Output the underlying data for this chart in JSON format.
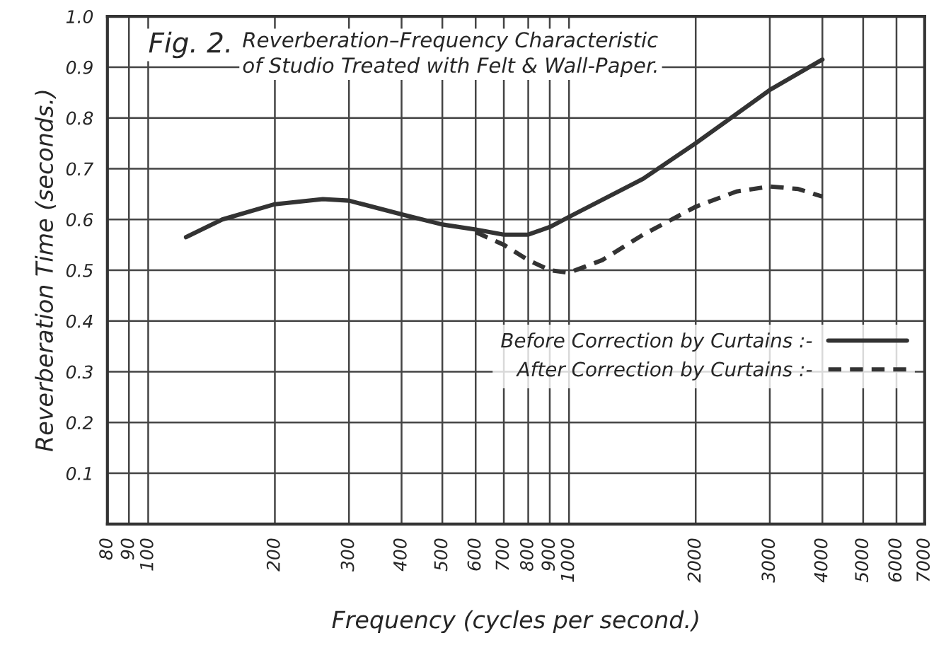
{
  "chart_data": {
    "type": "line",
    "title": "Reverberation–Frequency Characteristic of Studio Treated with Felt & Wall-Paper.",
    "annotations": [
      "Fig. 2."
    ],
    "xlabel": "Frequency (cycles per second.)",
    "ylabel": "Reverberation Time (seconds.)",
    "log": "x",
    "xlim": [
      80,
      7000
    ],
    "xticks": [
      80,
      90,
      100,
      200,
      300,
      400,
      500,
      600,
      700,
      800,
      900,
      1000,
      2000,
      3000,
      4000,
      5000,
      6000,
      7000
    ],
    "ylim": [
      0,
      1.0
    ],
    "yticks": [
      0.1,
      0.2,
      0.3,
      0.4,
      0.5,
      0.6,
      0.7,
      0.8,
      0.9,
      {
        "value": 1.0,
        "label": "1.0"
      }
    ],
    "grid": true,
    "legend": "right",
    "series": [
      {
        "name": "Before Correction by Curtains :-",
        "color": "#333333",
        "line_style": "solid",
        "x": [
          123,
          150,
          200,
          260,
          300,
          400,
          500,
          600,
          700,
          800,
          900,
          1000,
          1500,
          2000,
          3000,
          4000
        ],
        "values": [
          0.565,
          0.6,
          0.63,
          0.64,
          0.637,
          0.61,
          0.59,
          0.58,
          0.57,
          0.57,
          0.585,
          0.605,
          0.68,
          0.75,
          0.855,
          0.915
        ]
      },
      {
        "name": "After Correction by Curtains :-",
        "color": "#333333",
        "line_style": "dashed",
        "x": [
          600,
          700,
          800,
          900,
          1000,
          1200,
          1500,
          2000,
          2500,
          3000,
          3500,
          4000
        ],
        "values": [
          0.575,
          0.55,
          0.52,
          0.5,
          0.495,
          0.52,
          0.57,
          0.625,
          0.655,
          0.665,
          0.66,
          0.645
        ]
      }
    ]
  }
}
